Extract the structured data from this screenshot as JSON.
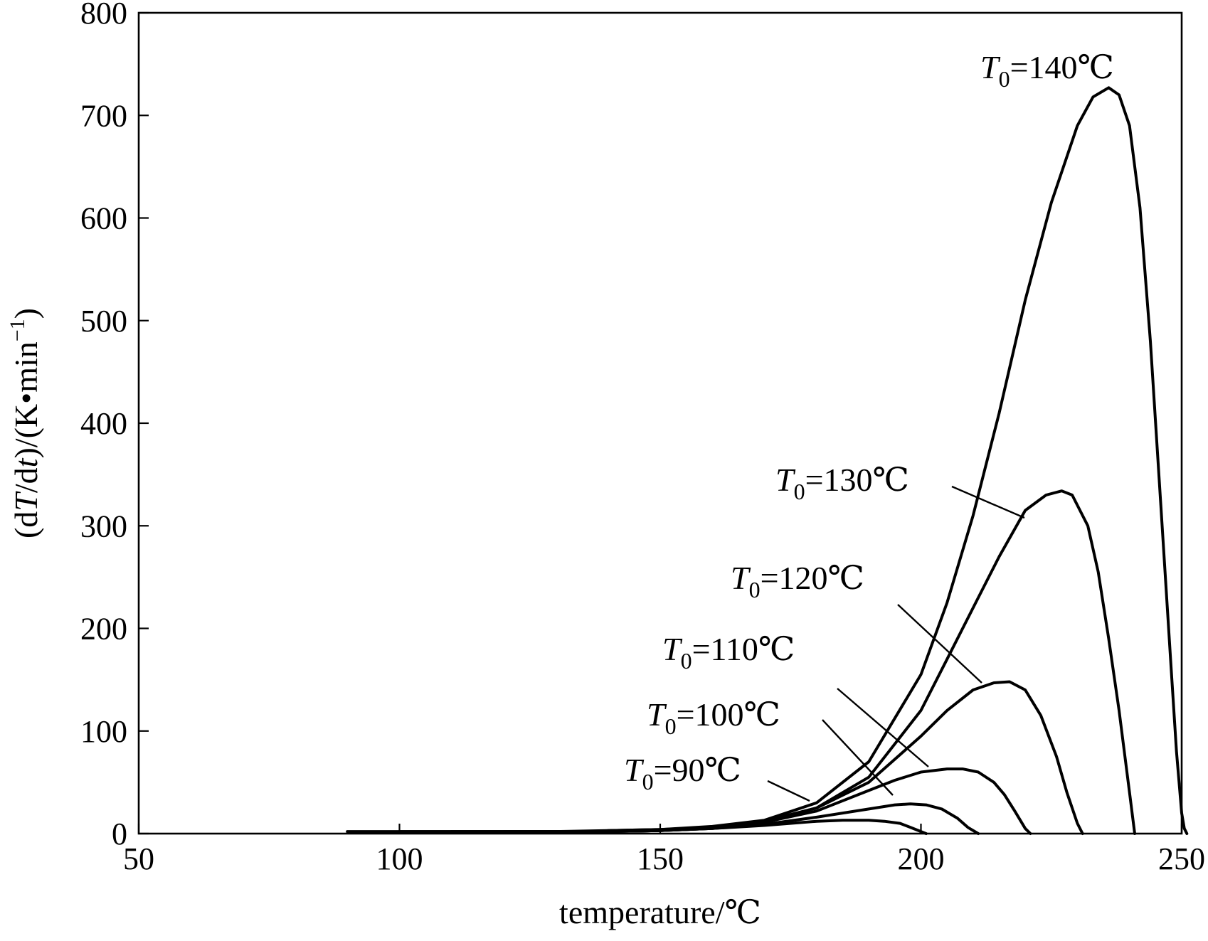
{
  "chart_data": {
    "type": "line",
    "xlabel": "temperature/℃",
    "ylabel": "(dT/dt)/(K•min⁻¹)",
    "xlim": [
      50,
      250
    ],
    "ylim": [
      0,
      800
    ],
    "x_ticks": [
      "50",
      "100",
      "150",
      "200",
      "250"
    ],
    "y_ticks": [
      "0",
      "100",
      "200",
      "300",
      "400",
      "500",
      "600",
      "700",
      "800"
    ],
    "grid": false,
    "legend": "none",
    "series": [
      {
        "name": "T0=140℃",
        "label": {
          "var": "T",
          "sub": "0",
          "rest": "=140℃"
        },
        "x": [
          140,
          150,
          160,
          170,
          180,
          190,
          200,
          205,
          210,
          215,
          220,
          225,
          230,
          233,
          236,
          238,
          240,
          242,
          244,
          246,
          248,
          249,
          250,
          250.5,
          251
        ],
        "y": [
          3,
          4,
          7,
          13,
          30,
          70,
          155,
          225,
          310,
          410,
          520,
          615,
          690,
          718,
          727,
          720,
          690,
          610,
          480,
          320,
          160,
          80,
          20,
          5,
          0
        ]
      },
      {
        "name": "T0=130℃",
        "label": {
          "var": "T",
          "sub": "0",
          "rest": "=130℃"
        },
        "x": [
          130,
          140,
          150,
          160,
          170,
          180,
          190,
          200,
          205,
          210,
          215,
          220,
          224,
          227,
          229,
          232,
          234,
          236,
          238,
          240,
          241
        ],
        "y": [
          2,
          3,
          4,
          6,
          12,
          25,
          55,
          120,
          170,
          220,
          270,
          315,
          330,
          334,
          330,
          300,
          255,
          190,
          120,
          40,
          0
        ]
      },
      {
        "name": "T0=120℃",
        "label": {
          "var": "T",
          "sub": "0",
          "rest": "=120℃"
        },
        "x": [
          120,
          140,
          150,
          160,
          170,
          180,
          190,
          200,
          205,
          210,
          214,
          217,
          220,
          223,
          226,
          228,
          230,
          231
        ],
        "y": [
          2,
          2,
          3,
          6,
          12,
          25,
          50,
          95,
          120,
          140,
          147,
          148,
          140,
          115,
          75,
          40,
          10,
          0
        ]
      },
      {
        "name": "T0=110℃",
        "label": {
          "var": "T",
          "sub": "0",
          "rest": "=110℃"
        },
        "x": [
          110,
          140,
          150,
          160,
          170,
          180,
          190,
          195,
          200,
          205,
          208,
          211,
          214,
          216,
          218,
          220,
          221
        ],
        "y": [
          2,
          2,
          3,
          5,
          11,
          22,
          42,
          52,
          60,
          63,
          63,
          60,
          50,
          38,
          22,
          5,
          0
        ]
      },
      {
        "name": "T0=100℃",
        "label": {
          "var": "T",
          "sub": "0",
          "rest": "=100℃"
        },
        "x": [
          100,
          140,
          150,
          160,
          170,
          180,
          190,
          195,
          198,
          201,
          204,
          207,
          209,
          211
        ],
        "y": [
          2,
          2,
          3,
          5,
          9,
          16,
          24,
          28,
          29,
          28,
          24,
          15,
          6,
          0
        ]
      },
      {
        "name": "T0=90℃",
        "label": {
          "var": "T",
          "sub": "0",
          "rest": "=90℃"
        },
        "x": [
          90,
          140,
          150,
          160,
          170,
          180,
          185,
          190,
          193,
          196,
          198,
          200,
          201
        ],
        "y": [
          2,
          2,
          3,
          5,
          8,
          12,
          13,
          13,
          12,
          10,
          6,
          2,
          0
        ]
      }
    ]
  }
}
